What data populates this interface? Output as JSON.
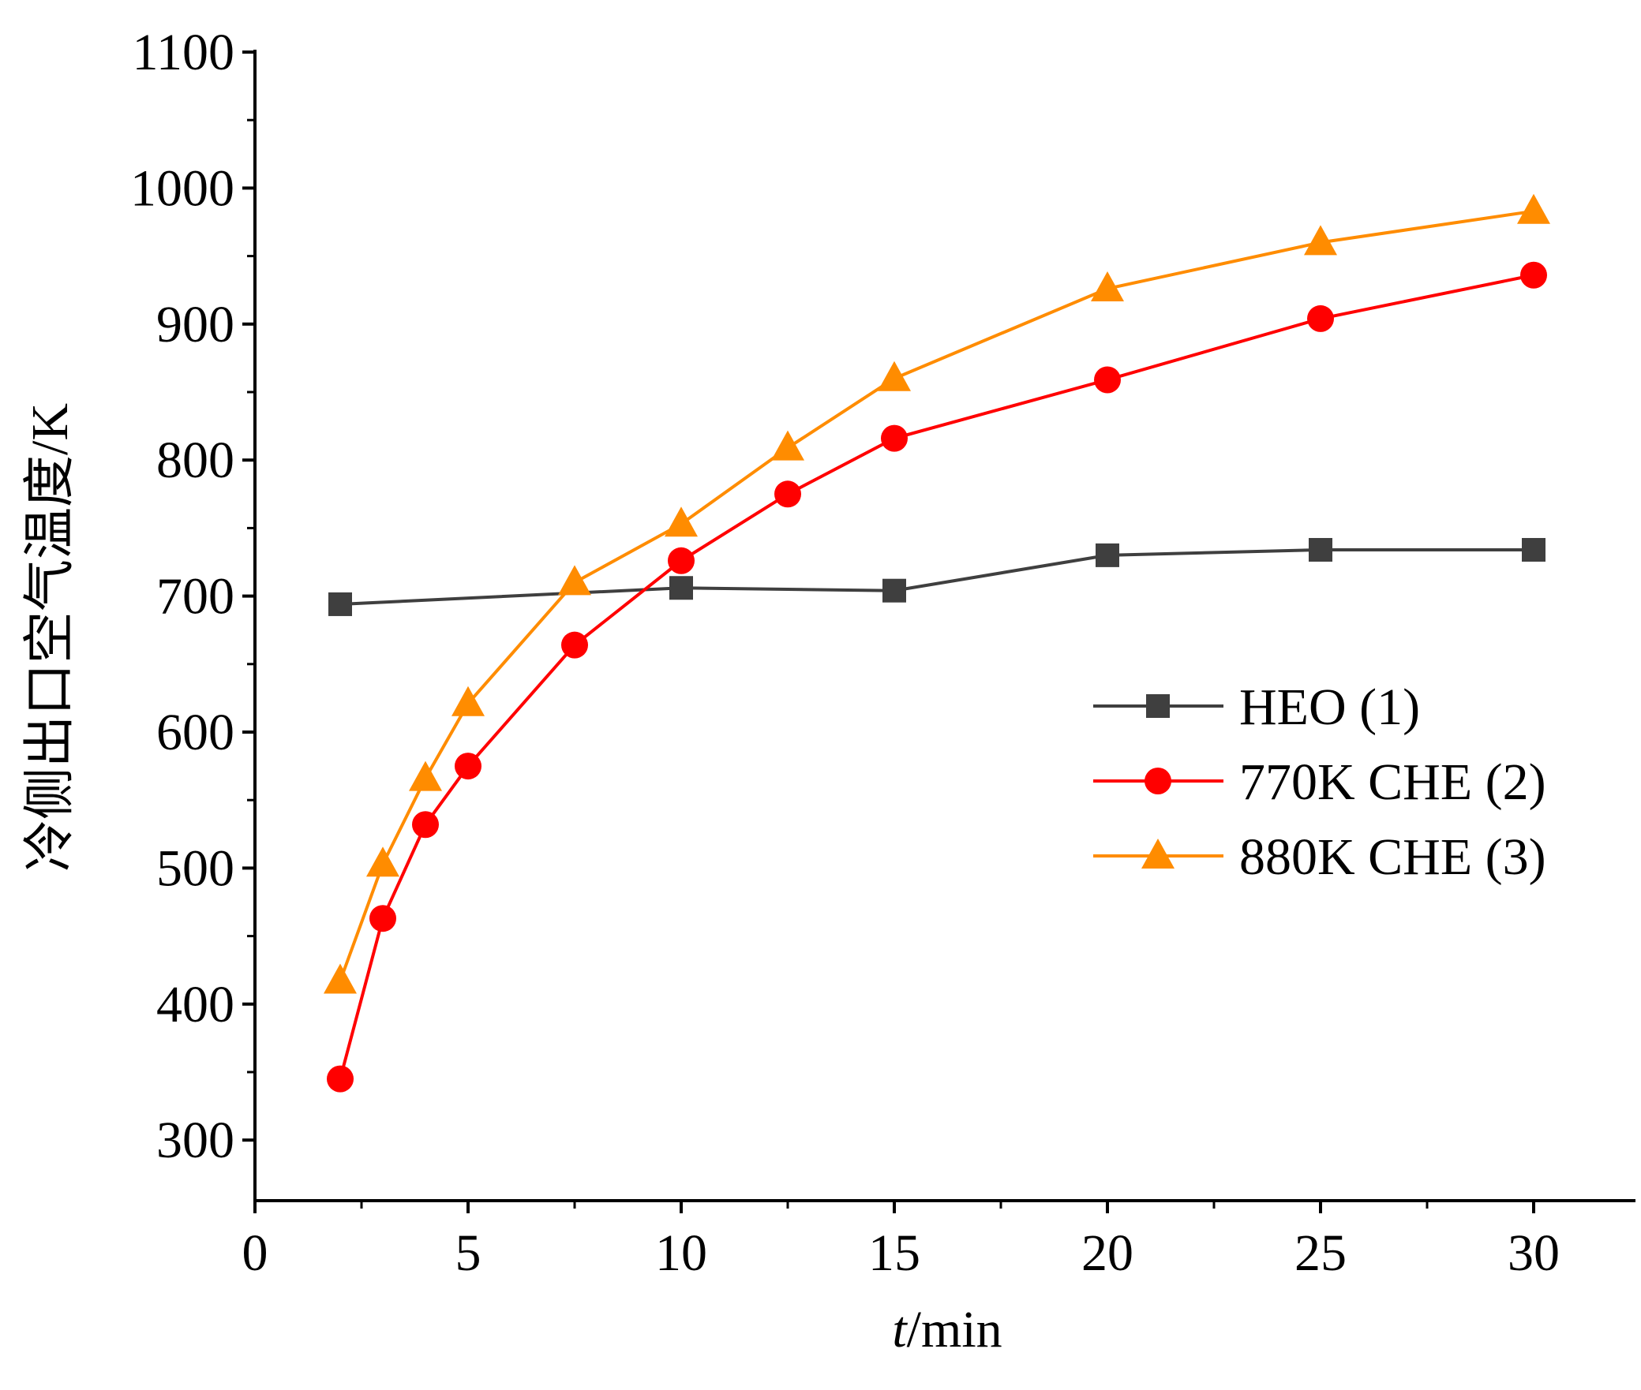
{
  "chart_data": {
    "type": "line",
    "xlabel_italic": "t",
    "xlabel_unit": "/min",
    "ylabel": "冷侧出口空气温度/K",
    "xlim": [
      0,
      32.5
    ],
    "ylim": [
      250,
      1100
    ],
    "x_ticks": [
      "0",
      "5",
      "10",
      "15",
      "20",
      "25",
      "30"
    ],
    "y_ticks": [
      "300",
      "400",
      "500",
      "600",
      "700",
      "800",
      "900",
      "1000",
      "1100"
    ],
    "grid": false,
    "legend_position": "center-right",
    "series": [
      {
        "name": "HEO (1)",
        "color": "#3f3f3f",
        "marker": "square",
        "x": [
          2,
          10,
          15,
          20,
          25,
          30
        ],
        "y": [
          694,
          706,
          704,
          730,
          734,
          734
        ]
      },
      {
        "name": "770K CHE (2)",
        "color": "#ff0000",
        "marker": "circle",
        "x": [
          2,
          3,
          4,
          5,
          7.5,
          10,
          12.5,
          15,
          20,
          25,
          30
        ],
        "y": [
          345,
          463,
          532,
          575,
          664,
          726,
          775,
          816,
          859,
          904,
          936
        ]
      },
      {
        "name": "880K CHE (3)",
        "color": "#ff8c00",
        "marker": "triangle",
        "x": [
          2,
          3,
          4,
          5,
          7.5,
          10,
          12.5,
          15,
          20,
          25,
          30
        ],
        "y": [
          417,
          503,
          566,
          621,
          710,
          753,
          809,
          860,
          926,
          960,
          983
        ]
      }
    ]
  }
}
